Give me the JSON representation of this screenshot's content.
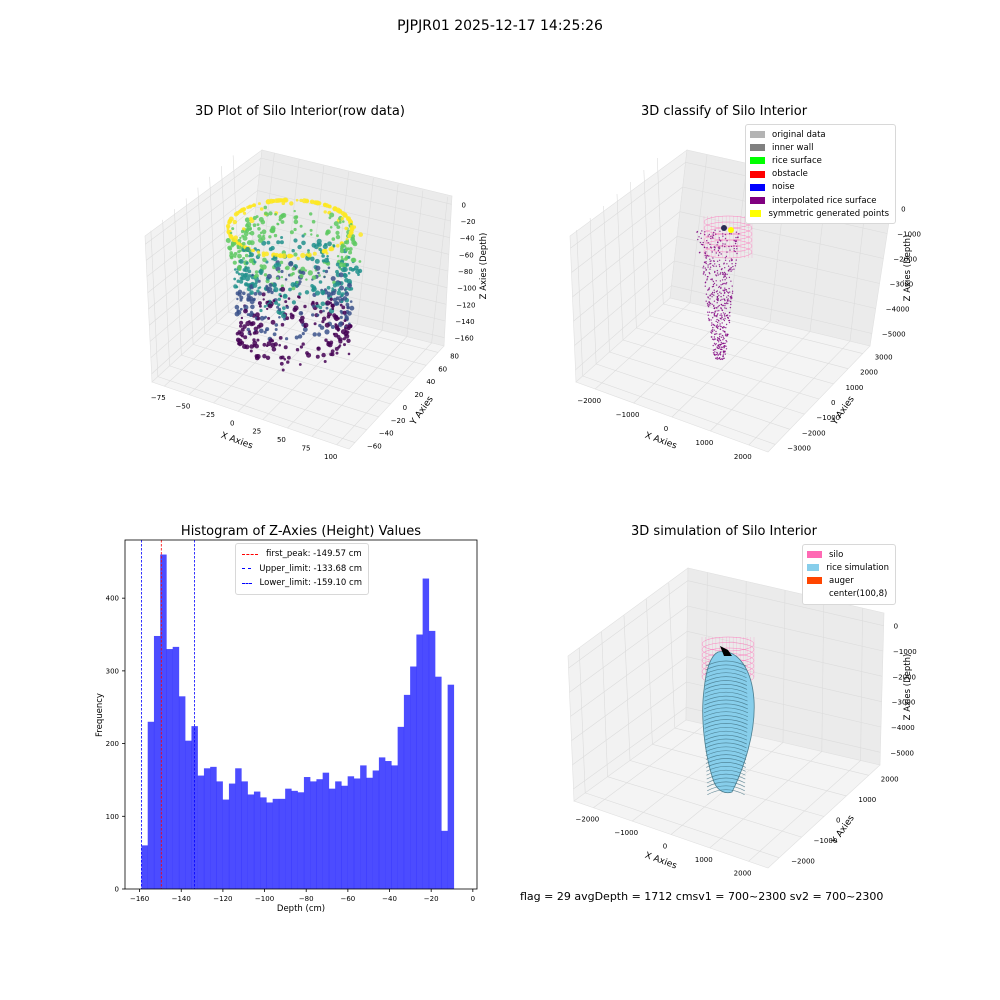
{
  "page": {
    "title": "PJPJR01 2025-12-17 14:25:26"
  },
  "panels": {
    "raw": {
      "title": "3D Plot of Silo Interior(row data)",
      "xlabel": "X Axies",
      "ylabel": "Y Axies",
      "zlabel": "Z Axies (Depth)"
    },
    "classify": {
      "title": "3D classify of Silo Interior",
      "xlabel": "X Axies",
      "ylabel": "Y Axies",
      "zlabel": "Z Axies (Depth)",
      "legend": [
        {
          "label": "original data",
          "color": "#b4b4b4"
        },
        {
          "label": "inner wall",
          "color": "#808080"
        },
        {
          "label": "rice surface",
          "color": "#00ff00"
        },
        {
          "label": "obstacle",
          "color": "#ff0000"
        },
        {
          "label": "noise",
          "color": "#0000ff"
        },
        {
          "label": "interpolated rice surface",
          "color": "#800080"
        },
        {
          "label": "symmetric generated points",
          "color": "#ffff00"
        }
      ]
    },
    "simulation": {
      "title": "3D simulation of Silo Interior",
      "xlabel": "X Axies",
      "ylabel": "Y Axies",
      "zlabel": "Z Axies (Depth)",
      "legend": [
        {
          "label": "silo",
          "color": "#ff69b4"
        },
        {
          "label": "rice simulation",
          "color": "#87ceeb"
        },
        {
          "label": "auger",
          "color": "#ff4500"
        },
        {
          "label": "center(100,8)",
          "color": "#ffffff"
        }
      ]
    }
  },
  "status": {
    "text": "flag = 29  avgDepth = 1712 cmsv1 = 700~2300  sv2 = 700~2300"
  },
  "chart_data": [
    {
      "type": "scatter",
      "title": "3D Plot of Silo Interior(row data)",
      "xlabel": "X Axies",
      "ylabel": "Y Axies",
      "zlabel": "Z Axies (Depth)",
      "x_ticks": [
        "−75",
        "−50",
        "−25",
        "0",
        "25",
        "50",
        "75",
        "100"
      ],
      "y_ticks": [
        "−60",
        "−40",
        "−20",
        "0",
        "20",
        "40",
        "60",
        "80"
      ],
      "z_ticks": [
        "0",
        "−20",
        "−40",
        "−60",
        "−80",
        "−100",
        "−120",
        "−140",
        "−160"
      ],
      "colormap": "viridis"
    },
    {
      "type": "scatter",
      "title": "3D classify of Silo Interior",
      "xlabel": "X Axies",
      "ylabel": "Y Axies",
      "zlabel": "Z Axies (Depth)",
      "x_ticks": [
        "−2000",
        "−1000",
        "0",
        "1000",
        "2000"
      ],
      "y_ticks": [
        "−3000",
        "−2000",
        "−1000",
        "0",
        "1000",
        "2000",
        "3000"
      ],
      "z_ticks": [
        "0",
        "−1000",
        "−2000",
        "−3000",
        "−4000",
        "−5000"
      ],
      "legend": [
        "original data",
        "inner wall",
        "rice surface",
        "obstacle",
        "noise",
        "interpolated rice surface",
        "symmetric generated points"
      ]
    },
    {
      "type": "bar",
      "title": "Histogram of Z-Axies (Height) Values",
      "xlabel": "Depth (cm)",
      "ylabel": "Frequency",
      "xlim": [
        -167,
        2
      ],
      "ylim": [
        0,
        480
      ],
      "x_ticks": [
        -160,
        -140,
        -120,
        -100,
        -80,
        -60,
        -40,
        -20,
        0
      ],
      "x_tick_labels": [
        "−160",
        "−140",
        "−120",
        "−100",
        "−80",
        "−60",
        "−40",
        "−20",
        "0"
      ],
      "y_ticks": [
        0,
        100,
        200,
        300,
        400
      ],
      "bin_start": -159.1,
      "bin_width": 3.0,
      "values": [
        60,
        230,
        348,
        460,
        330,
        333,
        265,
        204,
        224,
        156,
        166,
        168,
        148,
        123,
        145,
        166,
        148,
        130,
        134,
        126,
        119,
        124,
        124,
        138,
        135,
        133,
        154,
        148,
        151,
        160,
        138,
        148,
        142,
        155,
        152,
        170,
        153,
        163,
        181,
        176,
        170,
        223,
        267,
        306,
        350,
        427,
        355,
        292,
        80,
        281
      ],
      "color": "#0000ff",
      "lines": [
        {
          "label": "first_peak: -149.57 cm",
          "x": -149.57,
          "color": "#ff0000"
        },
        {
          "label": "Upper_limit: -133.68 cm",
          "x": -133.68,
          "color": "#0000ff"
        },
        {
          "label": "Lower_limit: -159.10 cm",
          "x": -159.1,
          "color": "#0000ff"
        }
      ]
    },
    {
      "type": "scatter",
      "title": "3D simulation of Silo Interior",
      "xlabel": "X Axies",
      "ylabel": "Y Axies",
      "zlabel": "Z Axies (Depth)",
      "x_ticks": [
        "−2000",
        "−1000",
        "0",
        "1000",
        "2000"
      ],
      "y_ticks": [
        "−2000",
        "−1000",
        "0",
        "1000",
        "2000"
      ],
      "z_ticks": [
        "0",
        "−1000",
        "−2000",
        "−3000",
        "−4000",
        "−5000"
      ],
      "legend": [
        "silo",
        "rice simulation",
        "auger",
        "center(100,8)"
      ]
    }
  ]
}
